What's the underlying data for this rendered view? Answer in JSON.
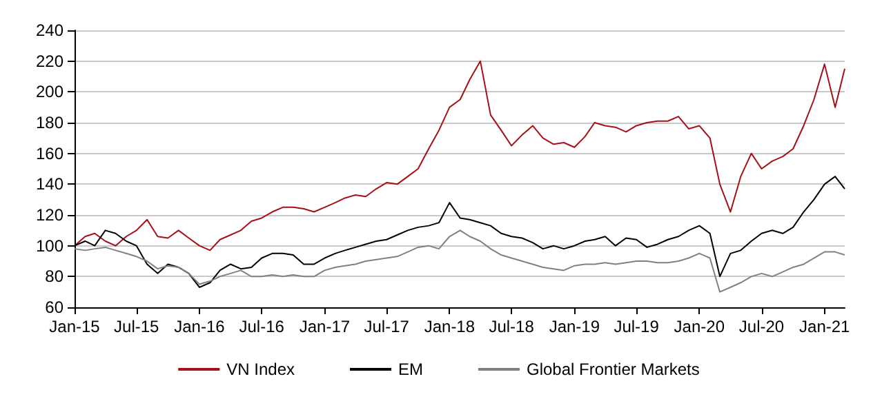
{
  "chart_data": {
    "type": "line",
    "x": [
      "2015-01",
      "2015-02",
      "2015-03",
      "2015-04",
      "2015-05",
      "2015-06",
      "2015-07",
      "2015-08",
      "2015-09",
      "2015-10",
      "2015-11",
      "2015-12",
      "2016-01",
      "2016-02",
      "2016-03",
      "2016-04",
      "2016-05",
      "2016-06",
      "2016-07",
      "2016-08",
      "2016-09",
      "2016-10",
      "2016-11",
      "2016-12",
      "2017-01",
      "2017-02",
      "2017-03",
      "2017-04",
      "2017-05",
      "2017-06",
      "2017-07",
      "2017-08",
      "2017-09",
      "2017-10",
      "2017-11",
      "2017-12",
      "2018-01",
      "2018-02",
      "2018-03",
      "2018-04",
      "2018-05",
      "2018-06",
      "2018-07",
      "2018-08",
      "2018-09",
      "2018-10",
      "2018-11",
      "2018-12",
      "2019-01",
      "2019-02",
      "2019-03",
      "2019-04",
      "2019-05",
      "2019-06",
      "2019-07",
      "2019-08",
      "2019-09",
      "2019-10",
      "2019-11",
      "2019-12",
      "2020-01",
      "2020-02",
      "2020-03",
      "2020-04",
      "2020-05",
      "2020-06",
      "2020-07",
      "2020-08",
      "2020-09",
      "2020-10",
      "2020-11",
      "2020-12",
      "2021-01",
      "2021-02",
      "2021-03"
    ],
    "series": [
      {
        "name": "VN Index",
        "color": "#a50f15",
        "values": [
          100,
          106,
          108,
          103,
          100,
          106,
          110,
          117,
          106,
          105,
          110,
          105,
          100,
          97,
          104,
          107,
          110,
          116,
          118,
          122,
          125,
          125,
          124,
          122,
          125,
          128,
          131,
          133,
          132,
          137,
          141,
          140,
          145,
          150,
          163,
          175,
          190,
          195,
          208,
          220,
          185,
          175,
          165,
          172,
          178,
          170,
          166,
          167,
          164,
          171,
          180,
          178,
          177,
          174,
          178,
          180,
          181,
          181,
          184,
          176,
          178,
          170,
          140,
          122,
          145,
          160,
          150,
          155,
          158,
          163,
          178,
          195,
          218,
          190,
          215
        ]
      },
      {
        "name": "EM",
        "color": "#000000",
        "values": [
          100,
          103,
          100,
          110,
          108,
          103,
          100,
          88,
          82,
          88,
          86,
          82,
          73,
          76,
          84,
          88,
          85,
          86,
          92,
          95,
          95,
          94,
          88,
          88,
          92,
          95,
          97,
          99,
          101,
          103,
          104,
          107,
          110,
          112,
          113,
          115,
          128,
          118,
          117,
          115,
          113,
          108,
          106,
          105,
          102,
          98,
          100,
          98,
          100,
          103,
          104,
          106,
          100,
          105,
          104,
          99,
          101,
          104,
          106,
          110,
          113,
          108,
          80,
          95,
          97,
          103,
          108,
          110,
          108,
          112,
          122,
          130,
          140,
          145,
          137
        ]
      },
      {
        "name": "Global Frontier Markets",
        "color": "#808080",
        "values": [
          98,
          97,
          98,
          99,
          97,
          95,
          93,
          90,
          85,
          87,
          86,
          82,
          75,
          77,
          80,
          82,
          84,
          80,
          80,
          81,
          80,
          81,
          80,
          80,
          84,
          86,
          87,
          88,
          90,
          91,
          92,
          93,
          96,
          99,
          100,
          98,
          106,
          110,
          106,
          103,
          98,
          94,
          92,
          90,
          88,
          86,
          85,
          84,
          87,
          88,
          88,
          89,
          88,
          89,
          90,
          90,
          89,
          89,
          90,
          92,
          95,
          92,
          70,
          73,
          76,
          80,
          82,
          80,
          83,
          86,
          88,
          92,
          96,
          96,
          94
        ]
      }
    ],
    "xlim": [
      "2015-01",
      "2021-03"
    ],
    "xticks": [
      {
        "value": "2015-01",
        "label": "Jan-15"
      },
      {
        "value": "2015-07",
        "label": "Jul-15"
      },
      {
        "value": "2016-01",
        "label": "Jan-16"
      },
      {
        "value": "2016-07",
        "label": "Jul-16"
      },
      {
        "value": "2017-01",
        "label": "Jan-17"
      },
      {
        "value": "2017-07",
        "label": "Jul-17"
      },
      {
        "value": "2018-01",
        "label": "Jan-18"
      },
      {
        "value": "2018-07",
        "label": "Jul-18"
      },
      {
        "value": "2019-01",
        "label": "Jan-19"
      },
      {
        "value": "2019-07",
        "label": "Jul-19"
      },
      {
        "value": "2020-01",
        "label": "Jan-20"
      },
      {
        "value": "2020-07",
        "label": "Jul-20"
      },
      {
        "value": "2021-01",
        "label": "Jan-21"
      }
    ],
    "ylim": [
      60,
      240
    ],
    "yticks": [
      60,
      80,
      100,
      120,
      140,
      160,
      180,
      200,
      220,
      240
    ],
    "grid": "y",
    "legend": "bottom",
    "marker": "none",
    "line_style": "solid"
  }
}
